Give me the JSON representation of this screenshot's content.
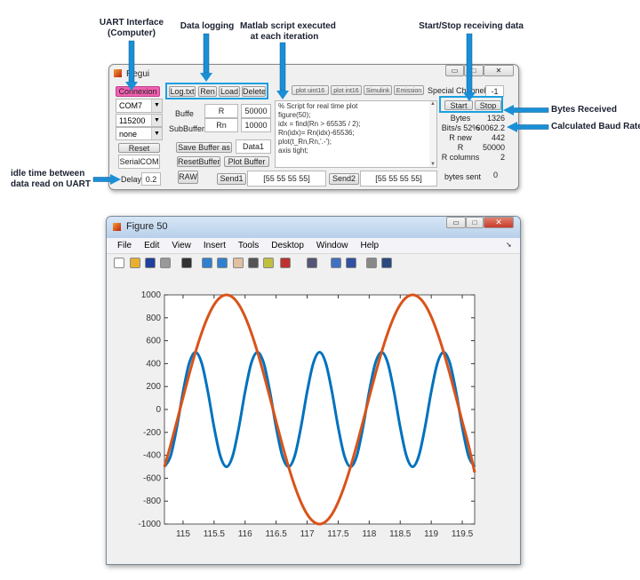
{
  "annotations": {
    "uart": "UART Interface",
    "uart2": "(Computer)",
    "logging": "Data logging",
    "script1": "Matlab script executed",
    "script2": "at each iteration",
    "startstop": "Start/Stop receiving data",
    "bytes": "Bytes Received",
    "baud": "Calculated Baud Rate",
    "idle1": "idle time between",
    "idle2": "data read on UART"
  },
  "gui": {
    "title": "Regui",
    "connexion": "Connexion",
    "log_buttons": [
      "Log.txt",
      "Ren",
      "Load",
      "Delete"
    ],
    "port": "COM7",
    "baud": "115200",
    "parity": "none",
    "reset": "Reset",
    "serialcom": "SerialCOM",
    "delay_label": "Delay",
    "delay_value": "0.2",
    "buffer_label": "Buffe",
    "buffer_name": "R",
    "buffer_size": "50000",
    "subbuffer_label": "SubBuffer",
    "subbuffer_name": "Rn",
    "subbuffer_size": "10000",
    "save_buffer": "Save Buffer as",
    "save_name": "Data1",
    "reset_buffer": "ResetBuffer",
    "plot_buffer": "Plot Buffer",
    "raw": "RAW",
    "send1": "Send1",
    "send1_value": "[55 55 55 55]",
    "send2": "Send2",
    "send2_value": "[55 55 55 55]",
    "plot_buttons": [
      "plot uint16",
      "plot int16",
      "Simulink",
      "Emission"
    ],
    "special_channel_label": "Special Channel",
    "special_channel_value": "-1",
    "start": "Start",
    "stop": "Stop",
    "script_lines": [
      "% Script for real time plot",
      "figure(50);",
      "idx = find(Rn > 65535 / 2);",
      "Rn(idx)= Rn(idx)-65536;",
      "plot(t_Rn,Rn,'.-');",
      "axis tight;"
    ],
    "stats": [
      {
        "label": "Bytes",
        "value": "1326"
      },
      {
        "label": "Bits/s 52%",
        "value": "60062.2"
      },
      {
        "label": "R new",
        "value": "442"
      },
      {
        "label": "R",
        "value": "50000"
      },
      {
        "label": "R columns",
        "value": "2"
      }
    ],
    "bytes_sent_label": "bytes sent",
    "bytes_sent_value": "0"
  },
  "figure": {
    "title": "Figure 50",
    "menu": [
      "File",
      "Edit",
      "View",
      "Insert",
      "Tools",
      "Desktop",
      "Window",
      "Help"
    ]
  },
  "colors": {
    "accent_arrow": "#1a8fd6",
    "series1": "#0072bd",
    "series2": "#d95319",
    "connexion": "#f060b0"
  },
  "chart_data": {
    "type": "line",
    "xlim": [
      114.7,
      119.7
    ],
    "ylim": [
      -1000,
      1000
    ],
    "xticks": [
      "115",
      "115.5",
      "116",
      "116.5",
      "117",
      "117.5",
      "118",
      "118.5",
      "119",
      "119.5"
    ],
    "yticks": [
      "-1000",
      "-800",
      "-600",
      "-400",
      "-200",
      "0",
      "200",
      "400",
      "600",
      "800",
      "1000"
    ],
    "grid": false,
    "x": [
      114.7,
      114.8,
      114.9,
      115.0,
      115.1,
      115.2,
      115.3,
      115.4,
      115.5,
      115.6,
      115.7,
      115.8,
      115.9,
      116.0,
      116.1,
      116.2,
      116.3,
      116.4,
      116.5,
      116.6,
      116.7,
      116.8,
      116.9,
      117.0,
      117.1,
      117.2,
      117.3,
      117.4,
      117.5,
      117.6,
      117.7,
      117.8,
      117.9,
      118.0,
      118.1,
      118.2,
      118.3,
      118.4,
      118.5,
      118.6,
      118.7,
      118.8,
      118.9,
      119.0,
      119.1,
      119.2,
      119.3,
      119.4,
      119.5,
      119.6,
      119.7
    ],
    "series": [
      {
        "color": "#0072bd",
        "values": [
          -500,
          -405,
          -155,
          155,
          405,
          500,
          405,
          155,
          -155,
          -405,
          -500,
          -405,
          -155,
          155,
          405,
          500,
          405,
          155,
          -155,
          -405,
          -500,
          -405,
          -155,
          155,
          405,
          500,
          405,
          155,
          -155,
          -405,
          -500,
          -405,
          -155,
          155,
          405,
          500,
          405,
          155,
          -155,
          -405,
          -500,
          -405,
          -155,
          155,
          405,
          500,
          405,
          155,
          -155,
          -405,
          -500
        ]
      },
      {
        "color": "#d95319",
        "values": [
          -500,
          -309,
          -105,
          105,
          309,
          500,
          669,
          809,
          914,
          978,
          1000,
          978,
          914,
          809,
          669,
          500,
          309,
          105,
          -105,
          -309,
          -500,
          -669,
          -809,
          -914,
          -978,
          -1000,
          -978,
          -914,
          -809,
          -669,
          -500,
          -309,
          -105,
          105,
          309,
          500,
          669,
          809,
          914,
          978,
          1000,
          978,
          914,
          809,
          669,
          500,
          309,
          105,
          -105,
          -309,
          -550
        ]
      }
    ]
  }
}
